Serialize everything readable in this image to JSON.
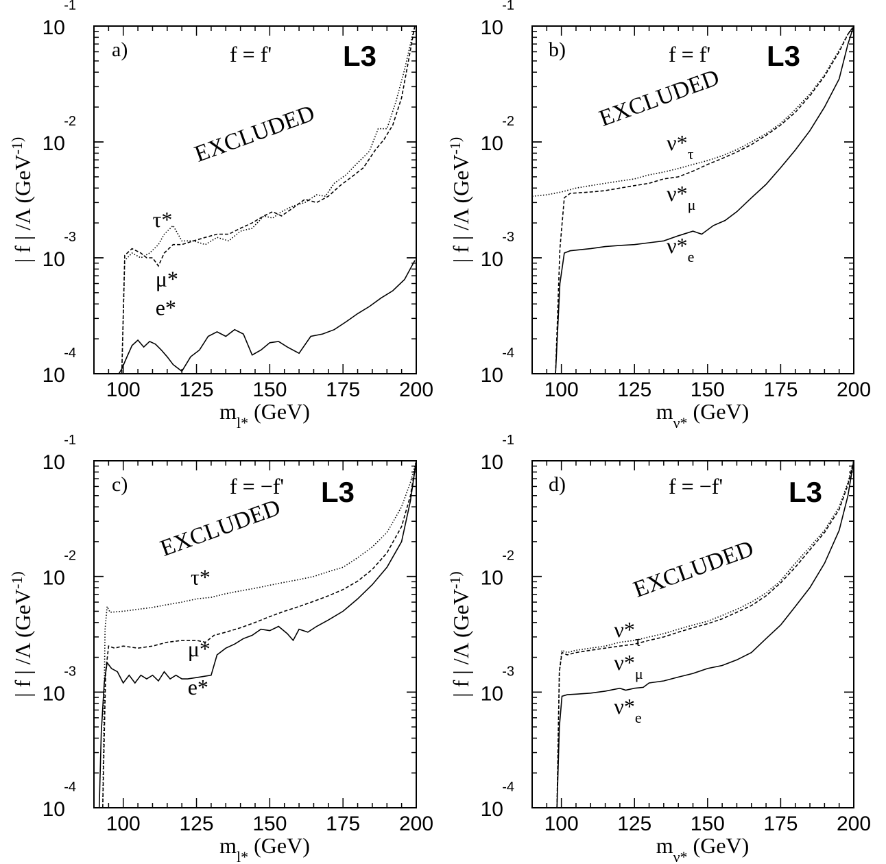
{
  "chart_data": [
    {
      "type": "line",
      "panel": "a)",
      "condition": "f = f'",
      "experiment": "L3",
      "region_label": "EXCLUDED",
      "xlabel": "m_l* (GeV)",
      "ylabel": "| f | /Λ (GeV^-1)",
      "xlim": [
        90,
        200
      ],
      "ylim": [
        0.0001,
        0.1
      ],
      "yscale": "log",
      "x_ticks": [
        "100",
        "125",
        "150",
        "175",
        "200"
      ],
      "y_ticks": [
        {
          "base": "10",
          "exp": "-4"
        },
        {
          "base": "10",
          "exp": "-3"
        },
        {
          "base": "10",
          "exp": "-2"
        },
        {
          "base": "10",
          "exp": "-1"
        }
      ],
      "series": [
        {
          "name": "τ*",
          "style": "dotted",
          "label_at": [
            110,
            0.00185
          ],
          "x": [
            99.5,
            100.5,
            103,
            106,
            109,
            112,
            114,
            117,
            120,
            124,
            128,
            132,
            136,
            140,
            144,
            148,
            151,
            154,
            158,
            162,
            166,
            169,
            172,
            176,
            180,
            184,
            187,
            190,
            193,
            196,
            198,
            199.5
          ],
          "y": [
            0.0001,
            0.00095,
            0.0011,
            0.001,
            0.0011,
            0.0013,
            0.0016,
            0.0019,
            0.0014,
            0.0014,
            0.0013,
            0.0015,
            0.0014,
            0.0017,
            0.0018,
            0.0023,
            0.0022,
            0.0025,
            0.0028,
            0.003,
            0.0035,
            0.0034,
            0.0044,
            0.0052,
            0.0066,
            0.0083,
            0.013,
            0.013,
            0.022,
            0.042,
            0.07,
            0.1
          ]
        },
        {
          "name": "μ*",
          "style": "dashed",
          "label_at": [
            111,
            0.00057
          ],
          "x": [
            99.5,
            100.5,
            103,
            106,
            108,
            110,
            112,
            114,
            117,
            120,
            124,
            128,
            132,
            136,
            140,
            144,
            148,
            151,
            154,
            158,
            162,
            166,
            170,
            174,
            178,
            182,
            186,
            189,
            192,
            195,
            197,
            199.5
          ],
          "y": [
            0.0001,
            0.00105,
            0.0012,
            0.0011,
            0.001,
            0.001,
            0.00085,
            0.0011,
            0.0013,
            0.0013,
            0.0014,
            0.0015,
            0.0016,
            0.0016,
            0.0018,
            0.002,
            0.0023,
            0.0025,
            0.0023,
            0.0027,
            0.0032,
            0.003,
            0.0034,
            0.0042,
            0.005,
            0.006,
            0.0085,
            0.0105,
            0.014,
            0.024,
            0.045,
            0.1
          ]
        },
        {
          "name": "e*",
          "style": "solid",
          "label_at": [
            111,
            0.00032
          ],
          "x": [
            98.5,
            99.5,
            101,
            103,
            105,
            107,
            109,
            111,
            113,
            115,
            117,
            120,
            123,
            126,
            129,
            132,
            135,
            138,
            141,
            144,
            147,
            150,
            153,
            156,
            160,
            164,
            168,
            172,
            176,
            180,
            184,
            188,
            192,
            196,
            199.5
          ],
          "y": [
            0.0001,
            0.00011,
            0.000135,
            0.000175,
            0.000195,
            0.00017,
            0.00019,
            0.00018,
            0.00016,
            0.00014,
            0.00012,
            0.000105,
            0.00014,
            0.00016,
            0.00021,
            0.00023,
            0.00021,
            0.00024,
            0.00022,
            0.000145,
            0.00016,
            0.000185,
            0.00019,
            0.00017,
            0.00015,
            0.00021,
            0.00022,
            0.00024,
            0.00028,
            0.00033,
            0.00038,
            0.00045,
            0.00052,
            0.00065,
            0.00095
          ]
        }
      ]
    },
    {
      "type": "line",
      "panel": "b)",
      "condition": "f = f'",
      "experiment": "L3",
      "region_label": "EXCLUDED",
      "xlabel": "m_ν* (GeV)",
      "ylabel": "| f | /Λ (GeV^-1)",
      "xlim": [
        90,
        200
      ],
      "ylim": [
        0.0001,
        0.1
      ],
      "yscale": "log",
      "x_ticks": [
        "100",
        "125",
        "150",
        "175",
        "200"
      ],
      "y_ticks": [
        {
          "base": "10",
          "exp": "-4"
        },
        {
          "base": "10",
          "exp": "-3"
        },
        {
          "base": "10",
          "exp": "-2"
        },
        {
          "base": "10",
          "exp": "-1"
        }
      ],
      "series": [
        {
          "name": "ν*_τ",
          "style": "dotted",
          "label_at": [
            136,
            0.0085
          ],
          "x": [
            90,
            95,
            100,
            105,
            110,
            115,
            120,
            125,
            130,
            135,
            140,
            145,
            150,
            155,
            160,
            165,
            170,
            175,
            180,
            185,
            190,
            195,
            198,
            200
          ],
          "y": [
            0.0034,
            0.0035,
            0.0037,
            0.004,
            0.0042,
            0.0044,
            0.0046,
            0.0048,
            0.0052,
            0.0055,
            0.0059,
            0.0064,
            0.0069,
            0.0076,
            0.0086,
            0.01,
            0.0118,
            0.0145,
            0.019,
            0.026,
            0.038,
            0.062,
            0.085,
            0.1
          ]
        },
        {
          "name": "ν*_μ",
          "style": "dashed",
          "label_at": [
            136,
            0.0031
          ],
          "x": [
            98,
            99.5,
            101,
            103,
            110,
            115,
            120,
            125,
            130,
            135,
            140,
            145,
            150,
            155,
            160,
            165,
            170,
            175,
            180,
            185,
            190,
            195,
            198,
            200
          ],
          "y": [
            0.0001,
            0.0012,
            0.0033,
            0.0036,
            0.0037,
            0.0038,
            0.004,
            0.0042,
            0.0044,
            0.0048,
            0.005,
            0.0056,
            0.0064,
            0.0072,
            0.0082,
            0.0095,
            0.0114,
            0.014,
            0.018,
            0.025,
            0.037,
            0.06,
            0.085,
            0.1
          ]
        },
        {
          "name": "ν*_e",
          "style": "solid",
          "label_at": [
            136,
            0.0011
          ],
          "x": [
            98,
            99.5,
            101,
            103,
            110,
            115,
            120,
            125,
            130,
            135,
            140,
            145,
            148,
            152,
            156,
            160,
            165,
            170,
            175,
            180,
            185,
            190,
            195,
            198,
            200
          ],
          "y": [
            0.0001,
            0.0006,
            0.0011,
            0.00115,
            0.0012,
            0.00125,
            0.00128,
            0.0013,
            0.00135,
            0.0014,
            0.00155,
            0.0017,
            0.0016,
            0.0019,
            0.0021,
            0.0025,
            0.0033,
            0.0043,
            0.006,
            0.0085,
            0.0125,
            0.02,
            0.035,
            0.07,
            0.1
          ]
        }
      ]
    },
    {
      "type": "line",
      "panel": "c)",
      "condition": "f = −f'",
      "experiment": "L3",
      "region_label": "EXCLUDED",
      "xlabel": "m_l* (GeV)",
      "ylabel": "| f | /Λ (GeV^-1)",
      "xlim": [
        90,
        200
      ],
      "ylim": [
        0.0001,
        0.1
      ],
      "yscale": "log",
      "x_ticks": [
        "100",
        "125",
        "150",
        "175",
        "200"
      ],
      "y_ticks": [
        {
          "base": "10",
          "exp": "-4"
        },
        {
          "base": "10",
          "exp": "-3"
        },
        {
          "base": "10",
          "exp": "-2"
        },
        {
          "base": "10",
          "exp": "-1"
        }
      ],
      "series": [
        {
          "name": "τ*",
          "style": "dotted",
          "label_at": [
            123,
            0.0085
          ],
          "x": [
            93,
            93.8,
            94.5,
            95.5,
            100,
            105,
            110,
            115,
            120,
            125,
            130,
            135,
            140,
            145,
            150,
            155,
            160,
            165,
            170,
            175,
            180,
            185,
            190,
            195,
            198,
            200
          ],
          "y": [
            0.0001,
            0.0035,
            0.0055,
            0.0049,
            0.005,
            0.0052,
            0.0054,
            0.0057,
            0.006,
            0.0064,
            0.0066,
            0.0071,
            0.0075,
            0.0079,
            0.0084,
            0.0089,
            0.0094,
            0.01,
            0.011,
            0.012,
            0.0145,
            0.018,
            0.024,
            0.04,
            0.065,
            0.1
          ]
        },
        {
          "name": "μ*",
          "style": "dashed",
          "label_at": [
            122,
            0.00205
          ],
          "x": [
            93,
            94,
            95,
            97,
            100,
            105,
            110,
            115,
            120,
            125,
            128,
            131,
            135,
            140,
            145,
            150,
            155,
            160,
            165,
            170,
            175,
            180,
            185,
            190,
            195,
            198,
            200
          ],
          "y": [
            0.0001,
            0.0015,
            0.0025,
            0.0024,
            0.0025,
            0.0024,
            0.0025,
            0.0027,
            0.0028,
            0.0028,
            0.0027,
            0.0031,
            0.0033,
            0.0036,
            0.004,
            0.0045,
            0.005,
            0.0055,
            0.0061,
            0.0068,
            0.0077,
            0.0091,
            0.0115,
            0.016,
            0.027,
            0.05,
            0.1
          ]
        },
        {
          "name": "e*",
          "style": "solid",
          "label_at": [
            122,
            0.00095
          ],
          "x": [
            91.8,
            92.5,
            93.5,
            94.5,
            96,
            98,
            100,
            102,
            104,
            106,
            108,
            110,
            112,
            114,
            116,
            118,
            120,
            122,
            126,
            130,
            132,
            135,
            138,
            141,
            144,
            147,
            150,
            153,
            156,
            158,
            160,
            163,
            166,
            170,
            175,
            180,
            185,
            190,
            195,
            198,
            200
          ],
          "y": [
            0.0001,
            0.00045,
            0.0012,
            0.0018,
            0.0016,
            0.0015,
            0.0012,
            0.0014,
            0.0012,
            0.0014,
            0.0013,
            0.0014,
            0.00125,
            0.0015,
            0.0013,
            0.0014,
            0.0013,
            0.0013,
            0.00135,
            0.0014,
            0.0021,
            0.0024,
            0.0026,
            0.0029,
            0.0031,
            0.0035,
            0.0034,
            0.0037,
            0.0032,
            0.0028,
            0.0035,
            0.0033,
            0.0037,
            0.0042,
            0.005,
            0.0064,
            0.0085,
            0.012,
            0.02,
            0.045,
            0.1
          ]
        }
      ]
    },
    {
      "type": "line",
      "panel": "d)",
      "condition": "f = −f'",
      "experiment": "L3",
      "region_label": "EXCLUDED",
      "xlabel": "m_ν* (GeV)",
      "ylabel": "| f | /Λ (GeV^-1)",
      "xlim": [
        90,
        200
      ],
      "ylim": [
        0.0001,
        0.1
      ],
      "yscale": "log",
      "x_ticks": [
        "100",
        "125",
        "150",
        "175",
        "200"
      ],
      "y_ticks": [
        {
          "base": "10",
          "exp": "-4"
        },
        {
          "base": "10",
          "exp": "-3"
        },
        {
          "base": "10",
          "exp": "-2"
        },
        {
          "base": "10",
          "exp": "-1"
        }
      ],
      "series": [
        {
          "name": "ν*_τ",
          "style": "dotted",
          "label_at": [
            118,
            0.003
          ],
          "x": [
            98.5,
            99.3,
            100.2,
            102,
            105,
            110,
            115,
            120,
            125,
            130,
            135,
            140,
            145,
            150,
            155,
            160,
            165,
            170,
            175,
            180,
            185,
            190,
            195,
            198,
            200
          ],
          "y": [
            0.0001,
            0.0015,
            0.0023,
            0.0022,
            0.0023,
            0.0024,
            0.0025,
            0.0027,
            0.0028,
            0.003,
            0.0032,
            0.0035,
            0.0038,
            0.0041,
            0.0046,
            0.0052,
            0.006,
            0.0072,
            0.0092,
            0.013,
            0.018,
            0.025,
            0.04,
            0.065,
            0.1
          ]
        },
        {
          "name": "ν*_μ",
          "style": "dashed",
          "label_at": [
            118,
            0.00155
          ],
          "x": [
            98.5,
            99.3,
            100.2,
            102,
            105,
            110,
            115,
            120,
            125,
            130,
            135,
            140,
            145,
            150,
            155,
            160,
            165,
            170,
            175,
            180,
            185,
            190,
            195,
            198,
            200
          ],
          "y": [
            0.0001,
            0.0015,
            0.0022,
            0.0021,
            0.0022,
            0.0023,
            0.0024,
            0.0025,
            0.0026,
            0.0028,
            0.003,
            0.0033,
            0.0036,
            0.0039,
            0.0043,
            0.0049,
            0.0056,
            0.0068,
            0.0088,
            0.012,
            0.017,
            0.024,
            0.038,
            0.062,
            0.1
          ]
        },
        {
          "name": "ν*_e",
          "style": "solid",
          "label_at": [
            118,
            0.00065
          ],
          "x": [
            98.5,
            99.3,
            100.2,
            102,
            105,
            110,
            115,
            120,
            122,
            125,
            128,
            130,
            135,
            140,
            145,
            150,
            155,
            160,
            165,
            170,
            175,
            180,
            185,
            190,
            195,
            198,
            200
          ],
          "y": [
            0.0001,
            0.0005,
            0.00092,
            0.00095,
            0.00096,
            0.00098,
            0.00102,
            0.00108,
            0.00104,
            0.00108,
            0.0011,
            0.0012,
            0.00125,
            0.00135,
            0.00145,
            0.0016,
            0.0017,
            0.0019,
            0.0022,
            0.0029,
            0.0038,
            0.0055,
            0.008,
            0.013,
            0.025,
            0.05,
            0.1
          ]
        }
      ]
    }
  ]
}
